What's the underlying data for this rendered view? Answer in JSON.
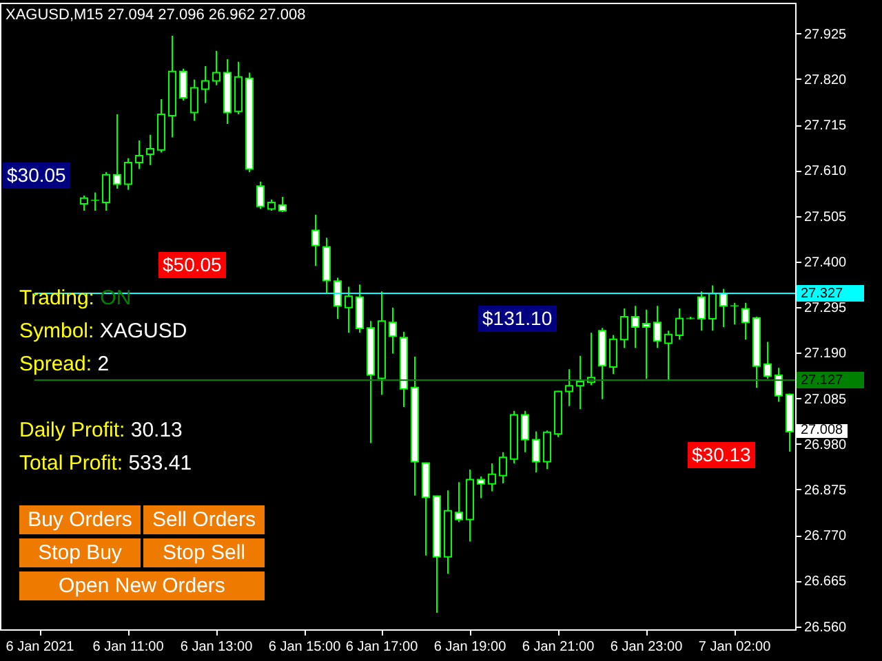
{
  "chart_data": {
    "type": "candlestick",
    "title": "XAGUSD,M15  27.094 27.096 26.962 27.008",
    "categories": [
      "6 Jan 2021",
      null,
      null,
      null,
      null,
      null,
      null,
      null,
      "6 Jan 11:00",
      null,
      null,
      null,
      null,
      null,
      null,
      null,
      "6 Jan 13:00",
      null,
      null,
      null,
      null,
      null,
      null,
      null,
      "6 Jan 15:00",
      null,
      null,
      null,
      null,
      null,
      null,
      "6 Jan 17:00",
      null,
      null,
      null,
      null,
      null,
      null,
      null,
      "6 Jan 19:00",
      null,
      null,
      null,
      null,
      null,
      null,
      null,
      "6 Jan 21:00",
      null,
      null,
      null,
      null,
      null,
      null,
      null,
      "6 Jan 23:00",
      null,
      null,
      null,
      null,
      null,
      null,
      null,
      "7 Jan 02:00",
      null,
      null,
      null,
      null,
      null
    ],
    "ohlc": [
      null,
      null,
      null,
      null,
      [
        27.533,
        27.552,
        27.517,
        27.546
      ],
      [
        27.541,
        27.559,
        27.517,
        27.541
      ],
      [
        27.536,
        27.606,
        27.517,
        27.6
      ],
      [
        27.6,
        27.739,
        27.568,
        27.578
      ],
      [
        27.578,
        27.638,
        27.565,
        27.628
      ],
      [
        27.628,
        27.679,
        27.613,
        27.644
      ],
      [
        27.647,
        27.692,
        27.622,
        27.66
      ],
      [
        27.657,
        27.774,
        27.651,
        27.739
      ],
      [
        27.736,
        27.92,
        27.686,
        27.838
      ],
      [
        27.838,
        27.844,
        27.771,
        27.777
      ],
      [
        27.743,
        27.819,
        27.724,
        27.8
      ],
      [
        27.797,
        27.85,
        27.765,
        27.816
      ],
      [
        27.816,
        27.885,
        27.806,
        27.835
      ],
      [
        27.835,
        27.866,
        27.717,
        27.743
      ],
      [
        27.746,
        27.86,
        27.739,
        27.825
      ],
      [
        27.822,
        27.835,
        27.606,
        27.613
      ],
      [
        27.574,
        27.584,
        27.521,
        27.527
      ],
      [
        27.521,
        27.543,
        27.517,
        27.536
      ],
      [
        27.53,
        27.549,
        27.514,
        27.517
      ],
      null,
      null,
      [
        27.472,
        27.508,
        27.39,
        27.437
      ],
      [
        27.434,
        27.455,
        27.326,
        27.356
      ],
      [
        27.355,
        27.363,
        27.268,
        27.298
      ],
      [
        27.294,
        27.342,
        27.236,
        27.32
      ],
      [
        27.318,
        27.347,
        27.236,
        27.246
      ],
      [
        27.247,
        27.263,
        26.982,
        27.139
      ],
      [
        27.131,
        27.331,
        27.093,
        27.263
      ],
      [
        27.26,
        27.294,
        27.188,
        27.228
      ],
      [
        27.225,
        27.238,
        27.065,
        27.107
      ],
      [
        27.11,
        27.181,
        26.861,
        26.939
      ],
      [
        26.936,
        26.937,
        26.723,
        26.857
      ],
      [
        26.86,
        26.861,
        26.591,
        26.72
      ],
      [
        26.72,
        26.873,
        26.681,
        26.826
      ],
      [
        26.822,
        26.892,
        26.8,
        26.806
      ],
      [
        26.806,
        26.921,
        26.755,
        26.898
      ],
      [
        26.898,
        26.905,
        26.855,
        26.888
      ],
      [
        26.888,
        26.935,
        26.871,
        26.91
      ],
      [
        26.907,
        26.961,
        26.889,
        26.949
      ],
      [
        26.945,
        27.056,
        26.935,
        27.047
      ],
      [
        27.047,
        27.056,
        26.961,
        26.99
      ],
      [
        26.99,
        27.009,
        26.914,
        26.939
      ],
      [
        26.939,
        27.011,
        26.922,
        27.007
      ],
      [
        27.003,
        27.102,
        26.996,
        27.101
      ],
      [
        27.101,
        27.152,
        27.067,
        27.114
      ],
      [
        27.114,
        27.183,
        27.06,
        27.124
      ],
      [
        27.122,
        27.236,
        27.115,
        27.133
      ],
      [
        27.241,
        27.247,
        27.083,
        27.16
      ],
      [
        27.157,
        27.231,
        27.141,
        27.221
      ],
      [
        27.22,
        27.292,
        27.201,
        27.273
      ],
      [
        27.273,
        27.298,
        27.201,
        27.249
      ],
      [
        27.257,
        27.289,
        27.13,
        27.249
      ],
      [
        27.26,
        27.298,
        27.201,
        27.217
      ],
      [
        27.212,
        27.241,
        27.125,
        27.232
      ],
      [
        27.23,
        27.292,
        27.22,
        27.269
      ],
      [
        27.269,
        27.273,
        27.267,
        27.269
      ],
      [
        27.318,
        27.331,
        27.241,
        27.268
      ],
      [
        27.268,
        27.345,
        27.241,
        27.326
      ],
      [
        27.326,
        27.337,
        27.249,
        27.298
      ],
      [
        27.298,
        27.305,
        27.255,
        27.298
      ],
      [
        27.291,
        27.305,
        27.22,
        27.26
      ],
      [
        27.27,
        27.273,
        27.109,
        27.159
      ],
      [
        27.164,
        27.215,
        27.13,
        27.136
      ],
      [
        27.138,
        27.155,
        27.077,
        27.091
      ],
      [
        27.094,
        27.096,
        26.962,
        27.008
      ]
    ],
    "ylim": [
      26.553,
      27.996
    ],
    "yticks": [
      27.925,
      {
        "value": 27.82,
        "label": "27.820"
      },
      27.715,
      {
        "value": 27.61,
        "label": "27.610"
      },
      27.505,
      {
        "value": 27.4,
        "label": "27.400"
      },
      27.295,
      {
        "value": 27.19,
        "label": "27.190"
      },
      27.085,
      {
        "value": 26.98,
        "label": "26.980"
      },
      26.875,
      {
        "value": 26.77,
        "label": "26.770"
      },
      26.665,
      {
        "value": 26.56,
        "label": "26.560"
      }
    ],
    "ref_lines": [
      {
        "axis": "y",
        "value": 27.327,
        "label": "27.327",
        "color": "#00ffff"
      },
      {
        "axis": "y",
        "value": 27.127,
        "label": "27.127",
        "color": "#008000"
      }
    ],
    "annotations": [
      "$30.05",
      "$50.05",
      "$131.10",
      "$30.13",
      "27.008",
      "Trading: ON",
      "Symbol: XAGUSD",
      "Spread: 2",
      "Daily Profit: 30.13",
      "Total Profit: 533.41",
      "Buy Orders",
      "Sell Orders",
      "Stop Buy",
      "Stop Sell",
      "Open New Orders"
    ],
    "grid": false
  }
}
